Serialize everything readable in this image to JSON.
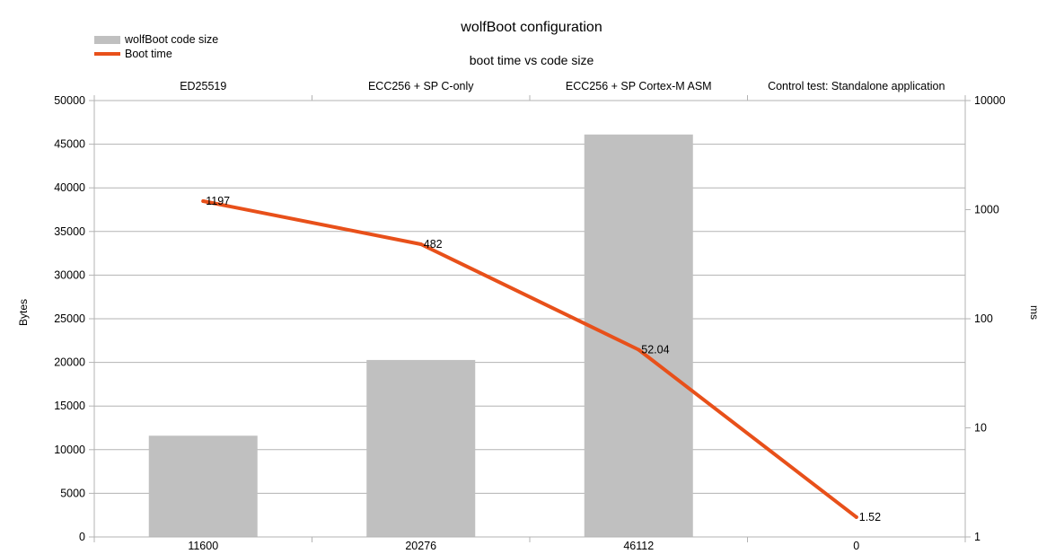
{
  "chart_data": {
    "type": "bar+line",
    "title": "wolfBoot configuration",
    "subtitle": "boot time vs code size",
    "categories": [
      "ED25519",
      "ECC256 + SP C-only",
      "ECC256 + SP Cortex-M ASM",
      "Control test: Standalone application"
    ],
    "x_tick_labels": [
      "11600",
      "20276",
      "46112",
      "0"
    ],
    "ylabel_left": "Bytes",
    "ylabel_right": "ms",
    "ylim_left": [
      0,
      50000
    ],
    "yticks_left": [
      "0",
      "5000",
      "10000",
      "15000",
      "20000",
      "25000",
      "30000",
      "35000",
      "40000",
      "45000",
      "50000"
    ],
    "ylim_right": [
      1,
      10000
    ],
    "yscale_right": "log",
    "yticks_right": [
      "1",
      "10",
      "100",
      "1000",
      "10000"
    ],
    "grid": true,
    "legend_position": "top-left",
    "series": [
      {
        "name": "wolfBoot code size",
        "type": "bar",
        "axis": "left",
        "color": "#c0c0c0",
        "values": [
          11600,
          20276,
          46112,
          0
        ]
      },
      {
        "name": "Boot time",
        "type": "line",
        "axis": "right",
        "color": "#e8501a",
        "values": [
          1197,
          482,
          52.04,
          1.52
        ],
        "data_labels": [
          "1197",
          "482",
          "52.04",
          "1.52"
        ]
      }
    ]
  }
}
